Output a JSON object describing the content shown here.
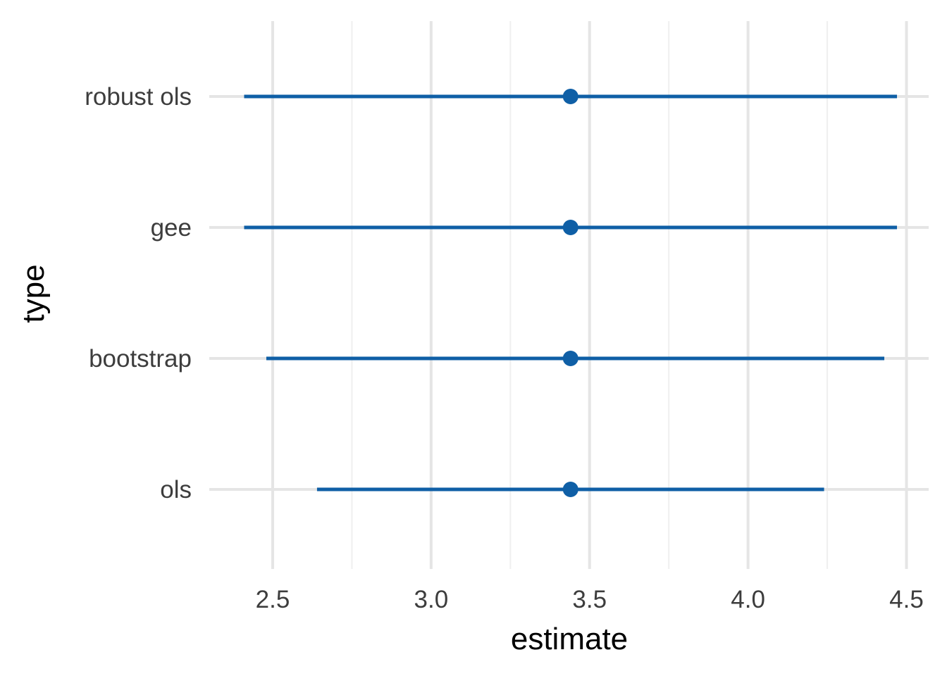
{
  "chart_data": {
    "type": "pointrange",
    "xlabel": "estimate",
    "ylabel": "type",
    "xlim": [
      2.3,
      4.57
    ],
    "x_ticks": [
      2.5,
      3.0,
      3.5,
      4.0,
      4.5
    ],
    "x_tick_labels": [
      "2.5",
      "3.0",
      "3.5",
      "4.0",
      "4.5"
    ],
    "x_minor_ticks": [
      2.75,
      3.25,
      3.75,
      4.25
    ],
    "categories": [
      "ols",
      "bootstrap",
      "gee",
      "robust ols"
    ],
    "points": [
      {
        "type": "ols",
        "estimate": 3.44,
        "low": 2.64,
        "high": 4.24
      },
      {
        "type": "bootstrap",
        "estimate": 3.44,
        "low": 2.48,
        "high": 4.43
      },
      {
        "type": "gee",
        "estimate": 3.44,
        "low": 2.41,
        "high": 4.47
      },
      {
        "type": "robust ols",
        "estimate": 3.44,
        "low": 2.41,
        "high": 4.47
      }
    ],
    "grid": true,
    "legend": "none",
    "colors": {
      "series": "#0f5fa6",
      "grid_major": "#e5e5e5",
      "grid_minor": "#efefef",
      "tick_text": "#3d3d3d",
      "title_text": "#000000"
    }
  }
}
